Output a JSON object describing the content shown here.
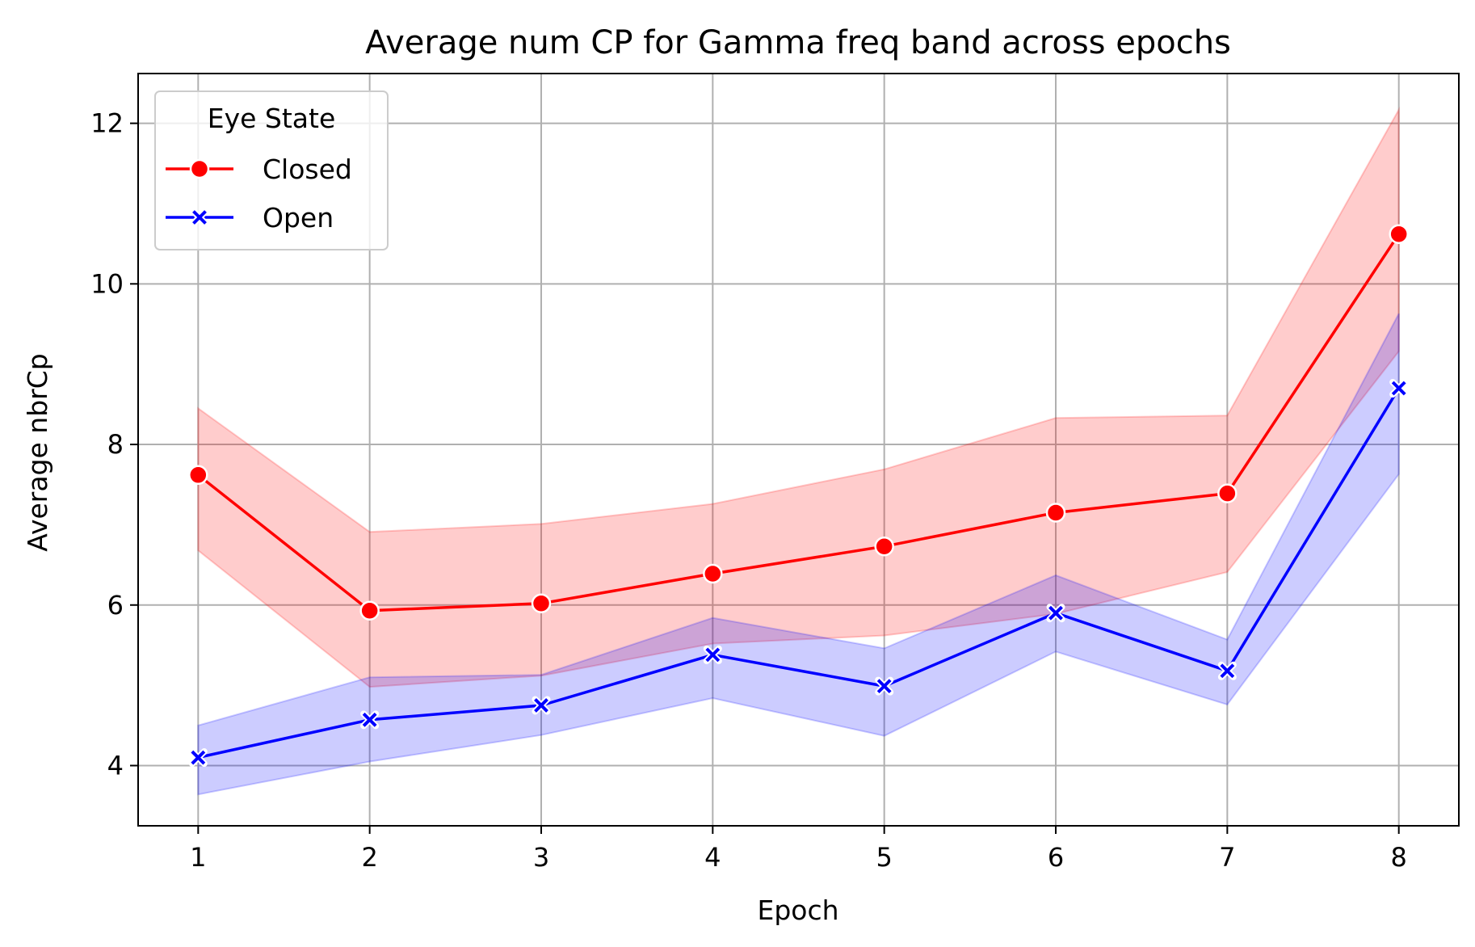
{
  "chart_data": {
    "type": "line",
    "title": "Average num CP for Gamma freq band across epochs",
    "xlabel": "Epoch",
    "ylabel": "Average nbrCp",
    "x": [
      1,
      2,
      3,
      4,
      5,
      6,
      7,
      8
    ],
    "xlim": [
      0.65,
      8.35
    ],
    "ylim": [
      3.25,
      12.62
    ],
    "xticks": [
      1,
      2,
      3,
      4,
      5,
      6,
      7,
      8
    ],
    "yticks": [
      4,
      6,
      8,
      10,
      12
    ],
    "grid": true,
    "legend": {
      "title": "Eye State",
      "placement": "top-left"
    },
    "series": [
      {
        "name": "Closed",
        "color": "#ff0000",
        "marker": "circle",
        "values": [
          7.62,
          5.93,
          6.02,
          6.39,
          6.73,
          7.15,
          7.39,
          10.62
        ],
        "ci_lower": [
          6.68,
          4.98,
          5.12,
          5.52,
          5.62,
          5.89,
          6.41,
          9.16
        ],
        "ci_upper": [
          8.45,
          6.91,
          7.01,
          7.26,
          7.69,
          8.33,
          8.36,
          12.17
        ]
      },
      {
        "name": "Open",
        "color": "#0000ff",
        "marker": "x",
        "values": [
          4.1,
          4.57,
          4.75,
          5.38,
          4.99,
          5.9,
          5.18,
          8.7
        ],
        "ci_lower": [
          3.64,
          4.05,
          4.38,
          4.84,
          4.37,
          5.42,
          4.76,
          7.63
        ],
        "ci_upper": [
          4.5,
          5.1,
          5.13,
          5.84,
          5.46,
          6.37,
          5.57,
          9.63
        ]
      }
    ]
  }
}
